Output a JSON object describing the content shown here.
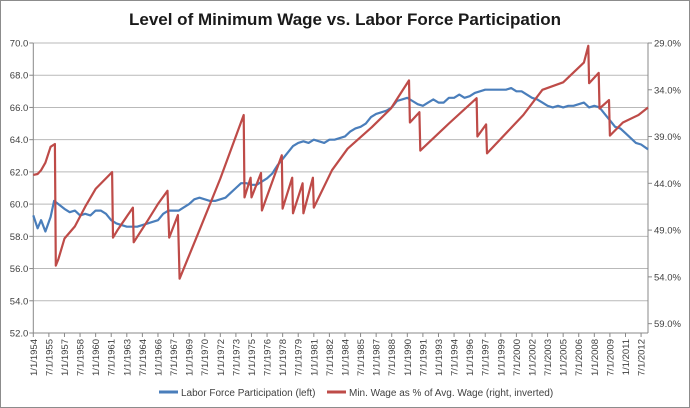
{
  "chart_data": {
    "type": "line",
    "title": "Level of Minimum Wage vs. Labor Force Participation",
    "colors": {
      "lfp": "#4a7ebb",
      "minwage": "#be4b48",
      "grid": "#b9b9b9"
    },
    "grid": true,
    "legend_placement": "bottom",
    "x_axis": {
      "type": "date",
      "range": [
        "1954-01",
        "2013-03"
      ],
      "tick_labels": [
        "1/1/1954",
        "7/1/1955",
        "1/1/1957",
        "7/1/1958",
        "1/1/1960",
        "7/1/1961",
        "1/1/1963",
        "7/1/1964",
        "1/1/1966",
        "7/1/1967",
        "1/1/1969",
        "7/1/1970",
        "1/1/1972",
        "7/1/1973",
        "1/1/1975",
        "7/1/1976",
        "1/1/1978",
        "7/1/1979",
        "1/1/1981",
        "7/1/1982",
        "1/1/1984",
        "7/1/1985",
        "1/1/1987",
        "7/1/1988",
        "1/1/1990",
        "7/1/1991",
        "1/1/1993",
        "7/1/1994",
        "1/1/1996",
        "7/1/1997",
        "1/1/1999",
        "7/1/2000",
        "1/1/2002",
        "7/1/2003",
        "1/1/2005",
        "7/1/2006",
        "1/1/2008",
        "7/1/2009",
        "1/1/2011",
        "7/1/2012"
      ]
    },
    "y_left": {
      "range": [
        52,
        70
      ],
      "tick_labels": [
        "52.0",
        "54.0",
        "56.0",
        "58.0",
        "60.0",
        "62.0",
        "64.0",
        "66.0",
        "68.0",
        "70.0"
      ]
    },
    "y_right": {
      "range": [
        29,
        60
      ],
      "inverted": true,
      "tick_labels": [
        "29.0%",
        "34.0%",
        "39.0%",
        "44.0%",
        "49.0%",
        "54.0%",
        "59.0%"
      ]
    },
    "series": [
      {
        "name": "Labor Force Participation (left)",
        "axis": "left",
        "points": [
          [
            "1954-01",
            59.3
          ],
          [
            "1954-06",
            58.5
          ],
          [
            "1954-10",
            59.0
          ],
          [
            "1955-03",
            58.3
          ],
          [
            "1955-09",
            59.2
          ],
          [
            "1956-01",
            60.2
          ],
          [
            "1956-06",
            60.0
          ],
          [
            "1957-01",
            59.7
          ],
          [
            "1957-07",
            59.5
          ],
          [
            "1958-01",
            59.6
          ],
          [
            "1958-07",
            59.3
          ],
          [
            "1959-01",
            59.4
          ],
          [
            "1959-07",
            59.3
          ],
          [
            "1960-01",
            59.6
          ],
          [
            "1960-07",
            59.6
          ],
          [
            "1961-01",
            59.4
          ],
          [
            "1961-07",
            59.0
          ],
          [
            "1962-01",
            58.8
          ],
          [
            "1962-07",
            58.7
          ],
          [
            "1963-01",
            58.6
          ],
          [
            "1963-07",
            58.6
          ],
          [
            "1964-01",
            58.6
          ],
          [
            "1964-07",
            58.7
          ],
          [
            "1965-01",
            58.8
          ],
          [
            "1965-07",
            58.9
          ],
          [
            "1966-01",
            59.0
          ],
          [
            "1966-07",
            59.4
          ],
          [
            "1967-01",
            59.6
          ],
          [
            "1967-07",
            59.6
          ],
          [
            "1968-01",
            59.6
          ],
          [
            "1968-07",
            59.8
          ],
          [
            "1969-01",
            60.0
          ],
          [
            "1969-07",
            60.3
          ],
          [
            "1970-01",
            60.4
          ],
          [
            "1970-07",
            60.3
          ],
          [
            "1971-01",
            60.2
          ],
          [
            "1971-07",
            60.2
          ],
          [
            "1972-01",
            60.3
          ],
          [
            "1972-07",
            60.4
          ],
          [
            "1973-01",
            60.7
          ],
          [
            "1973-07",
            61.0
          ],
          [
            "1974-01",
            61.3
          ],
          [
            "1974-07",
            61.3
          ],
          [
            "1975-01",
            61.2
          ],
          [
            "1975-07",
            61.2
          ],
          [
            "1976-01",
            61.4
          ],
          [
            "1976-07",
            61.6
          ],
          [
            "1977-01",
            61.9
          ],
          [
            "1977-07",
            62.4
          ],
          [
            "1978-01",
            62.8
          ],
          [
            "1978-07",
            63.2
          ],
          [
            "1979-01",
            63.6
          ],
          [
            "1979-07",
            63.8
          ],
          [
            "1980-01",
            63.9
          ],
          [
            "1980-07",
            63.8
          ],
          [
            "1981-01",
            64.0
          ],
          [
            "1981-07",
            63.9
          ],
          [
            "1982-01",
            63.8
          ],
          [
            "1982-07",
            64.0
          ],
          [
            "1983-01",
            64.0
          ],
          [
            "1983-07",
            64.1
          ],
          [
            "1984-01",
            64.2
          ],
          [
            "1984-07",
            64.5
          ],
          [
            "1985-01",
            64.7
          ],
          [
            "1985-07",
            64.8
          ],
          [
            "1986-01",
            65.0
          ],
          [
            "1986-07",
            65.4
          ],
          [
            "1987-01",
            65.6
          ],
          [
            "1987-07",
            65.7
          ],
          [
            "1988-01",
            65.8
          ],
          [
            "1988-07",
            66.0
          ],
          [
            "1989-01",
            66.4
          ],
          [
            "1989-07",
            66.5
          ],
          [
            "1990-01",
            66.6
          ],
          [
            "1990-07",
            66.4
          ],
          [
            "1991-01",
            66.2
          ],
          [
            "1991-07",
            66.1
          ],
          [
            "1992-01",
            66.3
          ],
          [
            "1992-07",
            66.5
          ],
          [
            "1993-01",
            66.3
          ],
          [
            "1993-07",
            66.3
          ],
          [
            "1994-01",
            66.6
          ],
          [
            "1994-07",
            66.6
          ],
          [
            "1995-01",
            66.8
          ],
          [
            "1995-07",
            66.6
          ],
          [
            "1996-01",
            66.7
          ],
          [
            "1996-07",
            66.9
          ],
          [
            "1997-01",
            67.0
          ],
          [
            "1997-07",
            67.1
          ],
          [
            "1998-01",
            67.1
          ],
          [
            "1998-07",
            67.1
          ],
          [
            "1999-01",
            67.1
          ],
          [
            "1999-07",
            67.1
          ],
          [
            "2000-01",
            67.2
          ],
          [
            "2000-07",
            67.0
          ],
          [
            "2001-01",
            67.0
          ],
          [
            "2001-07",
            66.8
          ],
          [
            "2002-01",
            66.6
          ],
          [
            "2002-07",
            66.5
          ],
          [
            "2003-01",
            66.3
          ],
          [
            "2003-07",
            66.1
          ],
          [
            "2004-01",
            66.0
          ],
          [
            "2004-07",
            66.1
          ],
          [
            "2005-01",
            66.0
          ],
          [
            "2005-07",
            66.1
          ],
          [
            "2006-01",
            66.1
          ],
          [
            "2006-07",
            66.2
          ],
          [
            "2007-01",
            66.3
          ],
          [
            "2007-07",
            66.0
          ],
          [
            "2008-01",
            66.1
          ],
          [
            "2008-07",
            66.0
          ],
          [
            "2009-01",
            65.6
          ],
          [
            "2009-07",
            65.2
          ],
          [
            "2010-01",
            64.8
          ],
          [
            "2010-07",
            64.7
          ],
          [
            "2011-01",
            64.4
          ],
          [
            "2011-07",
            64.1
          ],
          [
            "2012-01",
            63.8
          ],
          [
            "2012-07",
            63.7
          ],
          [
            "2013-03",
            63.4
          ]
        ]
      },
      {
        "name": "Min. Wage as % of Avg. Wage (right, inverted)",
        "axis": "right",
        "points": [
          [
            "1954-01",
            43.1
          ],
          [
            "1954-06",
            43.0
          ],
          [
            "1954-10",
            42.6
          ],
          [
            "1955-03",
            41.8
          ],
          [
            "1955-09",
            40.1
          ],
          [
            "1956-02",
            39.8
          ],
          [
            "1956-03",
            52.8
          ],
          [
            "1956-06",
            52.1
          ],
          [
            "1957-01",
            49.9
          ],
          [
            "1958-01",
            48.6
          ],
          [
            "1959-01",
            46.5
          ],
          [
            "1960-01",
            44.6
          ],
          [
            "1961-08",
            42.8
          ],
          [
            "1961-09",
            49.8
          ],
          [
            "1962-03",
            48.9
          ],
          [
            "1963-08",
            46.6
          ],
          [
            "1963-09",
            50.3
          ],
          [
            "1965-01",
            48.0
          ],
          [
            "1966-01",
            46.2
          ],
          [
            "1966-12",
            44.8
          ],
          [
            "1967-02",
            49.8
          ],
          [
            "1967-12",
            47.4
          ],
          [
            "1968-02",
            54.2
          ],
          [
            "1970-01",
            49.0
          ],
          [
            "1972-01",
            43.5
          ],
          [
            "1974-04",
            36.7
          ],
          [
            "1974-05",
            45.5
          ],
          [
            "1974-12",
            43.4
          ],
          [
            "1975-01",
            45.5
          ],
          [
            "1975-12",
            42.9
          ],
          [
            "1976-01",
            46.9
          ],
          [
            "1977-12",
            41.0
          ],
          [
            "1978-01",
            46.7
          ],
          [
            "1978-12",
            43.4
          ],
          [
            "1979-01",
            47.2
          ],
          [
            "1979-12",
            44.0
          ],
          [
            "1980-01",
            47.2
          ],
          [
            "1980-12",
            43.4
          ],
          [
            "1981-01",
            46.6
          ],
          [
            "1982-10",
            42.6
          ],
          [
            "1984-04",
            40.3
          ],
          [
            "1986-08",
            38.0
          ],
          [
            "1988-06",
            36.0
          ],
          [
            "1990-03",
            33.0
          ],
          [
            "1990-04",
            37.5
          ],
          [
            "1991-03",
            36.4
          ],
          [
            "1991-04",
            40.5
          ],
          [
            "1994-01",
            37.6
          ],
          [
            "1996-09",
            34.9
          ],
          [
            "1996-10",
            39.0
          ],
          [
            "1997-08",
            37.7
          ],
          [
            "1997-09",
            40.8
          ],
          [
            "2001-03",
            36.7
          ],
          [
            "2003-01",
            34.0
          ],
          [
            "2005-01",
            33.2
          ],
          [
            "2007-01",
            31.1
          ],
          [
            "2007-06",
            29.3
          ],
          [
            "2007-07",
            33.3
          ],
          [
            "2008-06",
            32.2
          ],
          [
            "2008-07",
            36.0
          ],
          [
            "2009-06",
            35.1
          ],
          [
            "2009-07",
            38.9
          ],
          [
            "2010-10",
            37.5
          ],
          [
            "2012-04",
            36.7
          ],
          [
            "2013-03",
            35.9
          ]
        ]
      }
    ]
  }
}
